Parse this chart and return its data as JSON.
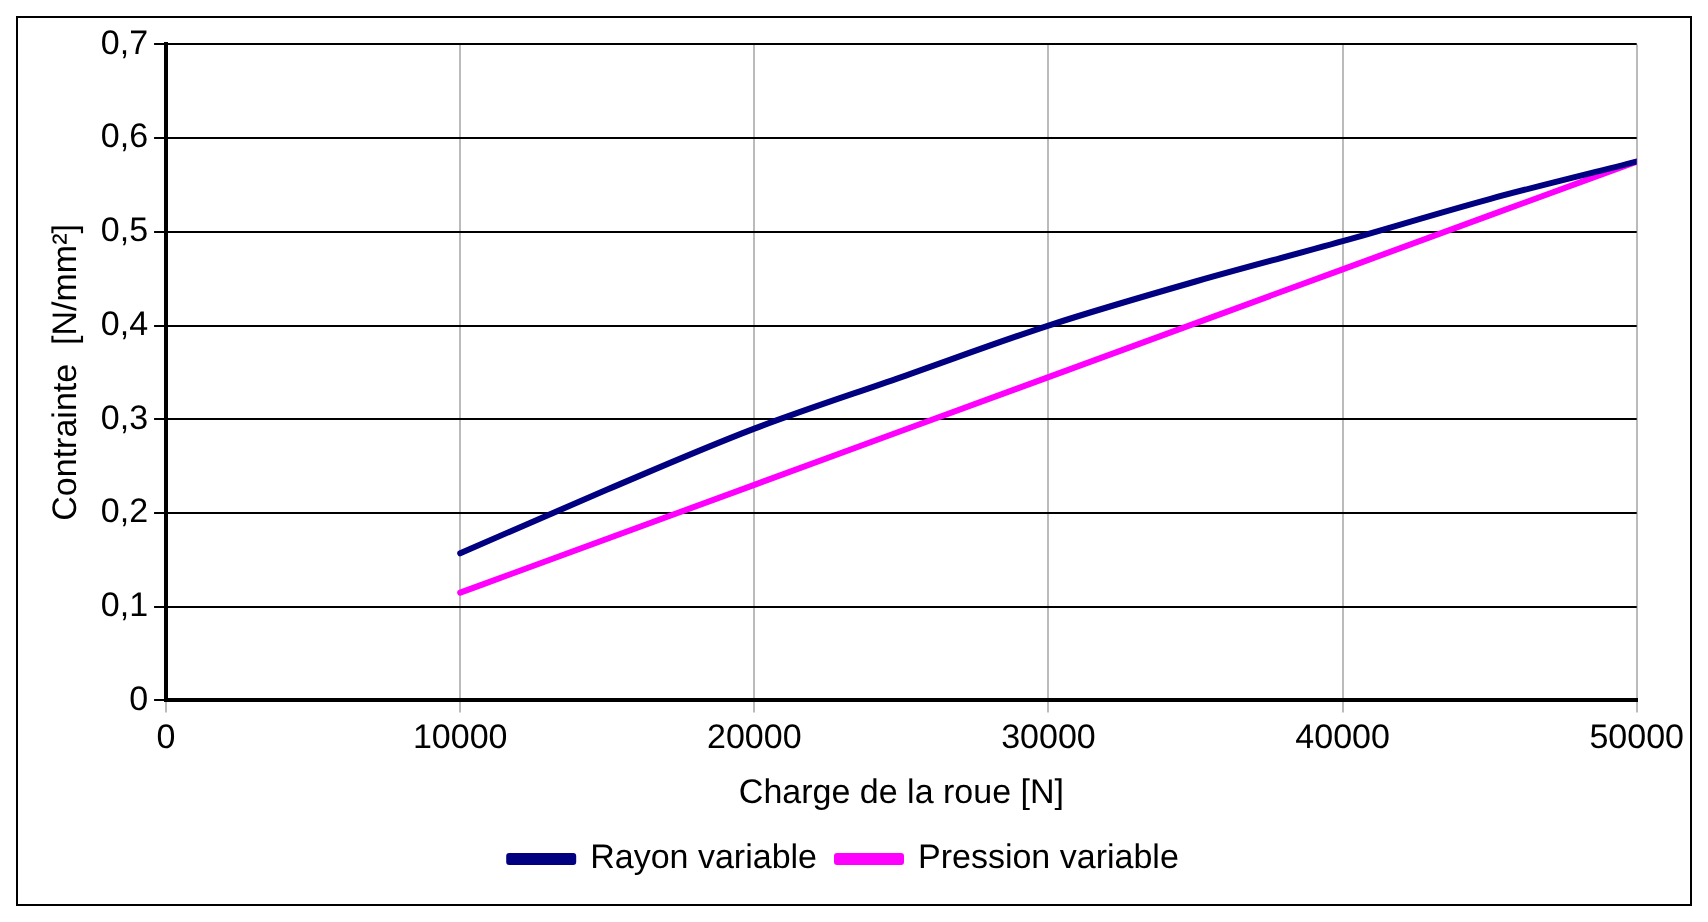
{
  "chart_data": {
    "type": "line",
    "xlabel": "Charge de la roue [N]",
    "ylabel": "Contrainte  [N/mm²]",
    "xlim": [
      0,
      50000
    ],
    "xticks": [
      0,
      10000,
      20000,
      30000,
      40000,
      50000
    ],
    "ylim": [
      0,
      0.7
    ],
    "yticks": [
      {
        "value": 0,
        "label": "0"
      },
      {
        "value": 0.1,
        "label": "0,1"
      },
      {
        "value": 0.2,
        "label": "0,2"
      },
      {
        "value": 0.3,
        "label": "0,3"
      },
      {
        "value": 0.4,
        "label": "0,4"
      },
      {
        "value": 0.5,
        "label": "0,5"
      },
      {
        "value": 0.6,
        "label": "0,6"
      },
      {
        "value": 0.7,
        "label": "0,7"
      }
    ],
    "grid": true,
    "legend": "bottom",
    "marker": "none",
    "line_style": "solid",
    "series": [
      {
        "name": "Rayon variable",
        "color": "#000080",
        "x": [
          10000,
          15000,
          20000,
          25000,
          30000,
          35000,
          40000,
          45000,
          50000
        ],
        "values": [
          0.157,
          0.225,
          0.29,
          0.345,
          0.4,
          0.447,
          0.49,
          0.535,
          0.575
        ]
      },
      {
        "name": "Pression variable",
        "color": "#ff00ff",
        "x": [
          10000,
          20000,
          30000,
          40000,
          50000
        ],
        "values": [
          0.115,
          0.23,
          0.345,
          0.46,
          0.575
        ]
      }
    ]
  }
}
